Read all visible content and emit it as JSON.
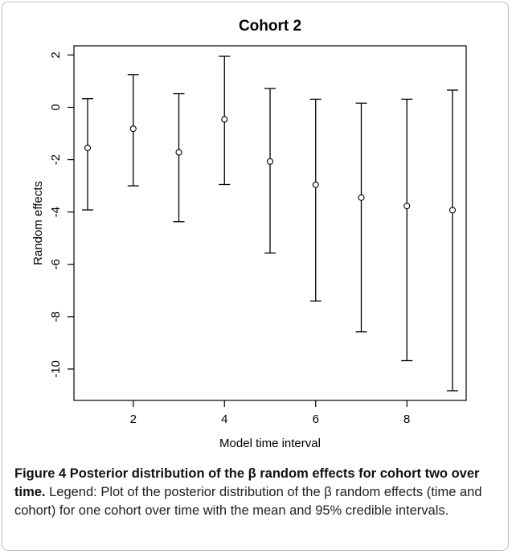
{
  "chart_data": {
    "type": "errorbar",
    "title": "Cohort 2",
    "xlabel": "Model time interval",
    "ylabel": "Random effects",
    "xlim": [
      0.7,
      9.3
    ],
    "ylim": [
      -11.2,
      2.35
    ],
    "xticks": [
      2,
      4,
      6,
      8
    ],
    "xtick_labels": [
      "2",
      "4",
      "6",
      "8"
    ],
    "yticks": [
      2,
      0,
      -2,
      -4,
      -6,
      -8,
      -10
    ],
    "ytick_labels": [
      "2",
      "0",
      "-2",
      "-4",
      "-6",
      "-8",
      "-10"
    ],
    "grid": false,
    "legend": "none",
    "points": [
      {
        "x": 1,
        "mean": -1.55,
        "lower": -3.92,
        "upper": 0.33
      },
      {
        "x": 2,
        "mean": -0.82,
        "lower": -3.0,
        "upper": 1.25
      },
      {
        "x": 3,
        "mean": -1.72,
        "lower": -4.37,
        "upper": 0.52
      },
      {
        "x": 4,
        "mean": -0.46,
        "lower": -2.95,
        "upper": 1.95
      },
      {
        "x": 5,
        "mean": -2.07,
        "lower": -5.57,
        "upper": 0.72
      },
      {
        "x": 6,
        "mean": -2.96,
        "lower": -7.4,
        "upper": 0.31
      },
      {
        "x": 7,
        "mean": -3.45,
        "lower": -8.58,
        "upper": 0.16
      },
      {
        "x": 8,
        "mean": -3.77,
        "lower": -9.68,
        "upper": 0.31
      },
      {
        "x": 9,
        "mean": -3.93,
        "lower": -10.83,
        "upper": 0.66
      }
    ],
    "colors": {
      "axis": "#000000",
      "bars": "#000000",
      "points": "#000000"
    }
  },
  "caption": {
    "title": "Figure 4 Posterior distribution of the β random effects for cohort two over time.",
    "body": " Legend: Plot of the posterior distribution of the β random effects (time and cohort) for one cohort over time with the mean and 95% credible intervals."
  }
}
